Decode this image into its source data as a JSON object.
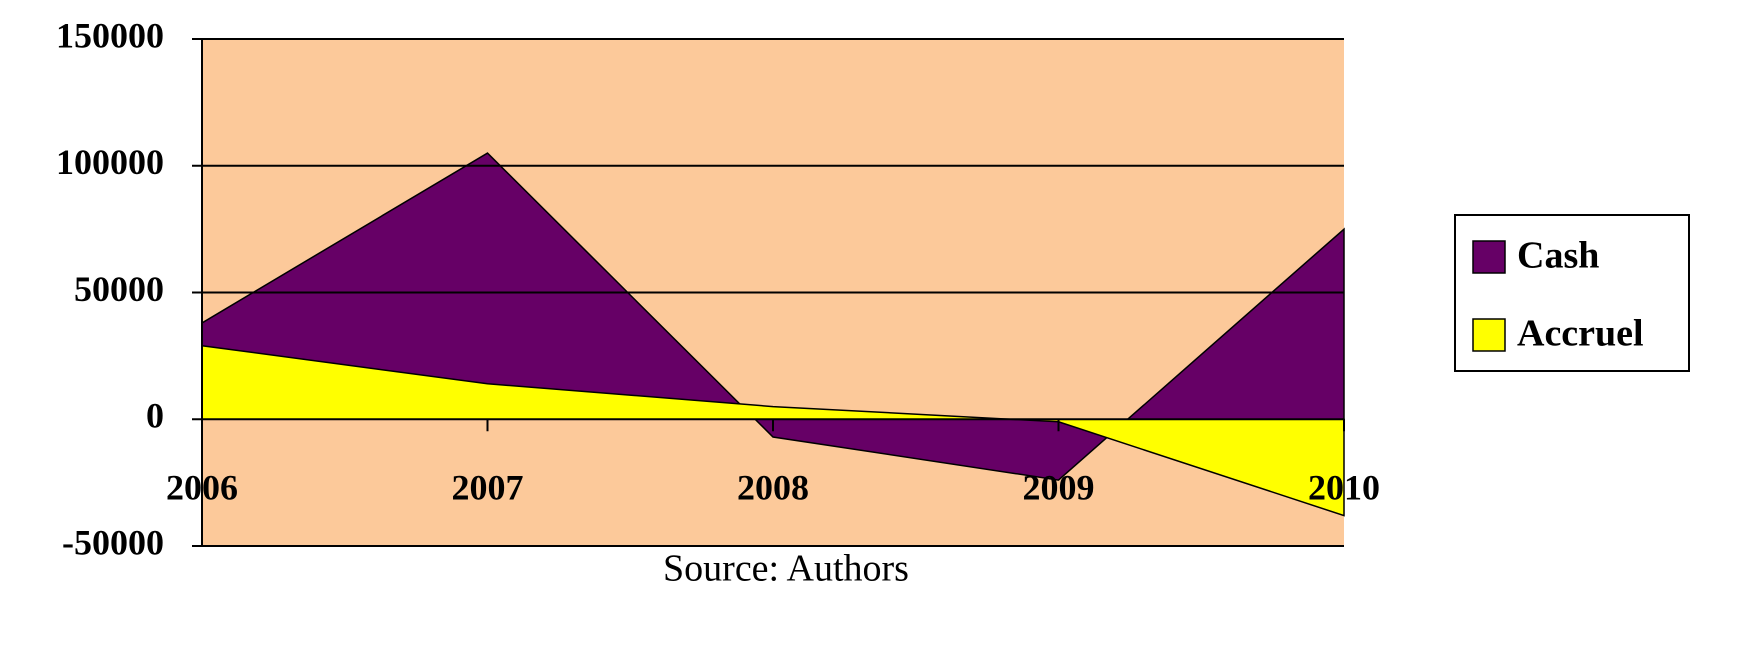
{
  "chart_data": {
    "type": "area",
    "categories": [
      "2006",
      "2007",
      "2008",
      "2009",
      "2010"
    ],
    "series": [
      {
        "name": "Cash",
        "color": "#660066",
        "values": [
          38000,
          105000,
          -7000,
          -24000,
          75000
        ]
      },
      {
        "name": "Accruel",
        "color": "#ffff00",
        "values": [
          29000,
          14000,
          5000,
          -1000,
          -38000
        ]
      }
    ],
    "ylim": [
      -50000,
      150000
    ],
    "yticks": [
      -50000,
      0,
      50000,
      100000,
      150000
    ],
    "grid": true,
    "legend": "right",
    "background": "#fcc99a",
    "source": "Source: Authors"
  }
}
